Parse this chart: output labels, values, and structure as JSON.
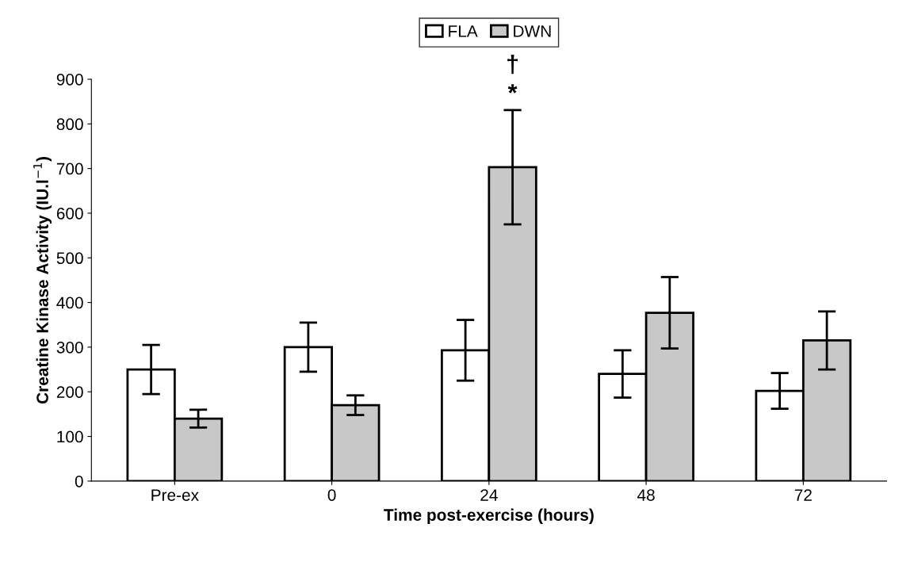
{
  "chart_data": {
    "type": "bar",
    "xlabel": "Time post-exercise (hours)",
    "ylabel": "Creatine Kinase Activity (IU.l$^{−1}$)",
    "categories": [
      "Pre-ex",
      "0",
      "24",
      "48",
      "72"
    ],
    "series": [
      {
        "name": "FLA",
        "color": "#ffffff",
        "values": [
          250,
          300,
          293,
          240,
          202
        ],
        "errors": [
          55,
          55,
          68,
          53,
          40
        ]
      },
      {
        "name": "DWN",
        "color": "#c8c8c8",
        "values": [
          140,
          170,
          703,
          377,
          315
        ],
        "errors": [
          20,
          22,
          128,
          80,
          65
        ]
      }
    ],
    "ylim": [
      0,
      900
    ],
    "yticks": [
      0,
      100,
      200,
      300,
      400,
      500,
      600,
      700,
      800,
      900
    ],
    "grid": false,
    "legend": "top",
    "annotations": [
      "*",
      "†"
    ]
  }
}
